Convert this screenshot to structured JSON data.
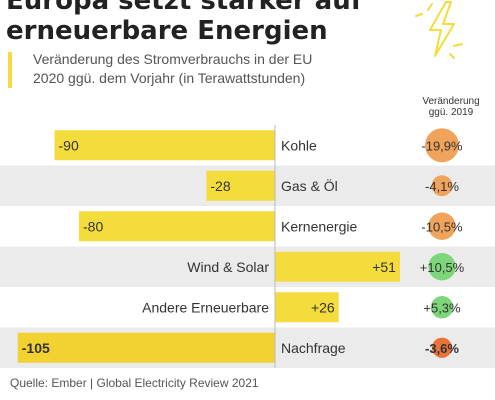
{
  "header": {
    "title": "Europa setzt stärker auf\nerneuerbare Energien",
    "subtitle": "Veränderung des Stromverbrauchs in der EU\n2020 ggü. dem Vorjahr (in Terawattstunden)",
    "change_column_label": "Veränderung\nggü. 2019"
  },
  "source": "Quelle: Ember | Global Electricity Review 2021",
  "colors": {
    "bar": "#f5dc3d",
    "demand_bar": "#f2d232",
    "row_bg": "#ebebeb",
    "negative_bubble": "#f0a35a",
    "positive_bubble": "#7ed67a",
    "strong_negative_bubble": "#e8743a"
  },
  "icons": [
    "lightning-bolt-icon"
  ],
  "chart_data": {
    "type": "bar",
    "orientation": "horizontal",
    "categories": [
      "Kohle",
      "Gas & Öl",
      "Kernenergie",
      "Wind & Solar",
      "Andere Erneuerbare",
      "Nachfrage"
    ],
    "values": [
      -90,
      -28,
      -80,
      51,
      26,
      -105
    ],
    "value_labels": [
      "-90",
      "-28",
      "-80",
      "+51",
      "+26",
      "-105"
    ],
    "change_percent": [
      -19.9,
      -4.1,
      -10.5,
      10.5,
      5.3,
      -3.6
    ],
    "change_labels": [
      "-19,9%",
      "-4,1%",
      "-10,5%",
      "+10,5%",
      "+5,3%",
      "-3,6%"
    ],
    "title": "Europa setzt stärker auf erneuerbare Energien",
    "unit": "Terawattstunden",
    "xlim": [
      -105,
      51
    ],
    "grid": false,
    "legend": "none"
  }
}
